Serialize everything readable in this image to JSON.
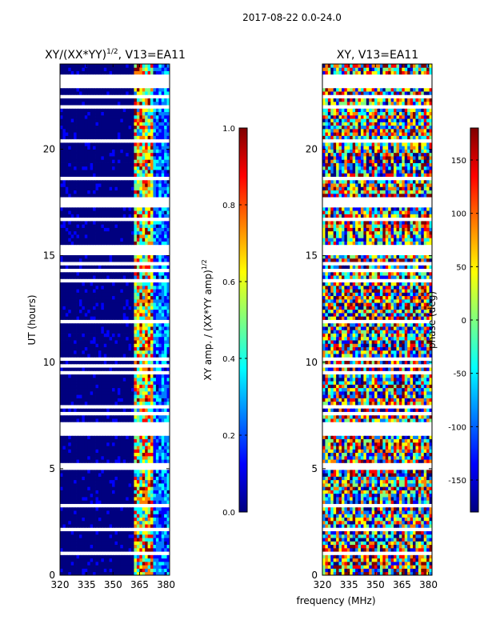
{
  "suptitle": "2017-08-22 0.0-24.0",
  "colors": {
    "jet": [
      "#00007f",
      "#0000ff",
      "#007fff",
      "#00ffff",
      "#7fff7f",
      "#ffff00",
      "#ff7f00",
      "#ff0000",
      "#7f0000"
    ],
    "gap": "#ffffff"
  },
  "chart_data": [
    {
      "type": "heatmap",
      "title_main": "XY/(XX*YY)",
      "title_sup": "1/2",
      "title_rest": ", V13=EA11",
      "xlabel": "",
      "ylabel": "UT (hours)",
      "xlim": [
        320,
        382
      ],
      "ylim": [
        0,
        24
      ],
      "xticks": [
        "320",
        "335",
        "350",
        "365",
        "380"
      ],
      "xtick_values": [
        320,
        335,
        350,
        365,
        380
      ],
      "yticks": [
        "0",
        "5",
        "10",
        "15",
        "20"
      ],
      "ytick_values": [
        0,
        5,
        10,
        15,
        20
      ],
      "colorbar": {
        "label_main": "XY amp. / (XX*YY amp)",
        "label_sup": "1/2",
        "range": [
          0.0,
          1.0
        ],
        "ticks": [
          "0.0",
          "0.2",
          "0.4",
          "0.6",
          "0.8",
          "1.0"
        ],
        "tick_values": [
          0.0,
          0.2,
          0.4,
          0.6,
          0.8,
          1.0
        ]
      }
    },
    {
      "type": "heatmap",
      "title": "XY, V13=EA11",
      "xlabel": "frequency (MHz)",
      "ylabel": "",
      "xlim": [
        320,
        382
      ],
      "ylim": [
        0,
        24
      ],
      "xticks": [
        "320",
        "335",
        "350",
        "365",
        "380"
      ],
      "xtick_values": [
        320,
        335,
        350,
        365,
        380
      ],
      "yticks": [
        "0",
        "5",
        "10",
        "15",
        "20"
      ],
      "ytick_values": [
        0,
        5,
        10,
        15,
        20
      ],
      "colorbar": {
        "label": "phase (deg)",
        "range": [
          -180,
          180
        ],
        "ticks": [
          "-150",
          "-100",
          "-50",
          "0",
          "50",
          "100",
          "150"
        ],
        "tick_values": [
          -150,
          -100,
          -50,
          0,
          50,
          100,
          150
        ]
      }
    }
  ]
}
